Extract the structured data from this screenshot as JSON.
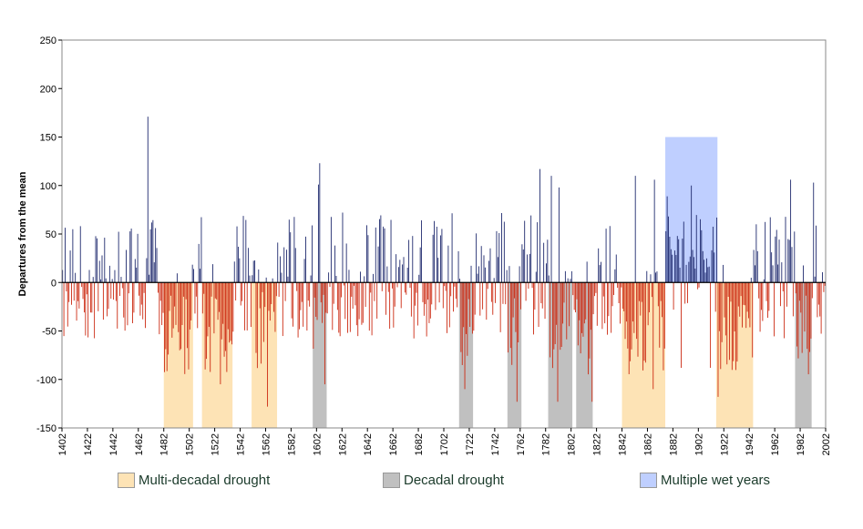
{
  "chart_data": {
    "type": "bar",
    "ylabel": "Departures from the mean",
    "xlabel": "",
    "ylim": [
      -150,
      250
    ],
    "yticks": [
      -150,
      -100,
      -50,
      0,
      50,
      100,
      150,
      200,
      250
    ],
    "xlim": [
      1402,
      2002
    ],
    "xticks": [
      1402,
      1422,
      1442,
      1462,
      1482,
      1502,
      1522,
      1542,
      1562,
      1582,
      1602,
      1622,
      1642,
      1662,
      1682,
      1702,
      1722,
      1742,
      1762,
      1782,
      1802,
      1822,
      1842,
      1862,
      1882,
      1902,
      1922,
      1942,
      1962,
      1982,
      2002
    ],
    "bar_colors": {
      "positive": "#1f2a6e",
      "negative": "#cc2a12"
    },
    "series": [
      {
        "values_description_note": ""
      }
    ],
    "shaded_periods": [
      {
        "category": "multi-decadal",
        "start": 1482,
        "end": 1505
      },
      {
        "category": "multi-decadal",
        "start": 1512,
        "end": 1536
      },
      {
        "category": "multi-decadal",
        "start": 1551,
        "end": 1571
      },
      {
        "category": "decadal",
        "start": 1599,
        "end": 1610
      },
      {
        "category": "decadal",
        "start": 1714,
        "end": 1725
      },
      {
        "category": "decadal",
        "start": 1752,
        "end": 1763
      },
      {
        "category": "decadal",
        "start": 1784,
        "end": 1803
      },
      {
        "category": "decadal",
        "start": 1806,
        "end": 1819
      },
      {
        "category": "multi-decadal",
        "start": 1842,
        "end": 1876
      },
      {
        "category": "wet",
        "start": 1876,
        "end": 1917,
        "top": 150
      },
      {
        "category": "multi-decadal",
        "start": 1916,
        "end": 1945
      },
      {
        "category": "decadal",
        "start": 1978,
        "end": 1991
      }
    ],
    "spikes": [
      {
        "year": 1469,
        "value": 171
      },
      {
        "year": 1604,
        "value": 123
      },
      {
        "year": 1603,
        "value": 101
      },
      {
        "year": 1777,
        "value": 117
      },
      {
        "year": 1786,
        "value": 110
      },
      {
        "year": 1792,
        "value": 98
      },
      {
        "year": 1852,
        "value": 110
      },
      {
        "year": 1867,
        "value": 106
      },
      {
        "year": 1896,
        "value": 100
      },
      {
        "year": 1974,
        "value": 106
      },
      {
        "year": 1992,
        "value": 103
      },
      {
        "year": 1563,
        "value": -128
      },
      {
        "year": 1759,
        "value": -123
      },
      {
        "year": 1791,
        "value": -123
      },
      {
        "year": 1818,
        "value": -123
      },
      {
        "year": 1917,
        "value": -118
      },
      {
        "year": 1718,
        "value": -110
      },
      {
        "year": 1866,
        "value": -110
      },
      {
        "year": 1526,
        "value": -105
      },
      {
        "year": 1888,
        "value": -88
      },
      {
        "year": 1911,
        "value": -88
      },
      {
        "year": 1608,
        "value": -105
      }
    ]
  },
  "legend": [
    {
      "label": "Multi-decadal drought",
      "color": "#fde3b5"
    },
    {
      "label": "Decadal drought",
      "color": "#c0c0c0"
    },
    {
      "label": "Multiple wet years",
      "color": "#bfcfff"
    }
  ]
}
